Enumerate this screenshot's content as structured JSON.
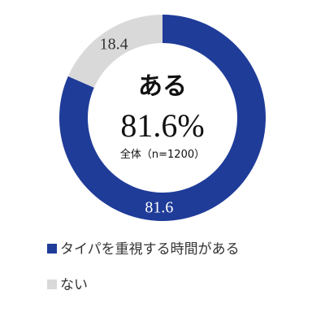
{
  "chart_data": {
    "type": "pie",
    "style": "donut",
    "categories": [
      "タイパを重視する時間がある",
      "ない"
    ],
    "values": [
      81.6,
      18.4
    ],
    "colors": [
      "#1f3c99",
      "#d9d9d9"
    ],
    "value_labels": [
      "81.6",
      "18.4"
    ],
    "label_colors": [
      "#ffffff",
      "#333333"
    ],
    "center": {
      "title": "ある",
      "value": "81.6%",
      "note": "全体（n=1200）"
    },
    "legend": {
      "placement": "bottom-left",
      "items": [
        "タイパを重視する時間がある",
        "ない"
      ]
    }
  }
}
